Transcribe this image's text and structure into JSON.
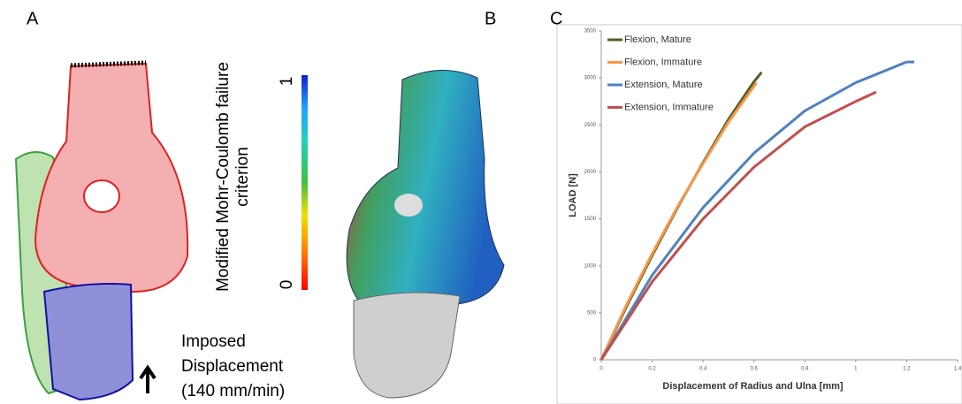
{
  "panel_a": {
    "label": "A",
    "caption_lines": [
      "Imposed",
      "Displacement",
      "(140 mm/min)"
    ]
  },
  "colorbar": {
    "title_lines": [
      "Modified Mohr-Coulomb failure",
      "criterion"
    ],
    "ticks": [
      0,
      1
    ],
    "lim": [
      0,
      1
    ]
  },
  "panel_b": {
    "label": "B"
  },
  "chart_data": {
    "type": "line",
    "label": "C",
    "x_label": "Displacement of Radius and Ulna [mm]",
    "y_label": "LOAD [N]",
    "xlim": [
      0,
      1.4
    ],
    "xticks": [
      0,
      0.2,
      0.4,
      0.6,
      0.8,
      1,
      1.2,
      1.4
    ],
    "ylim": [
      0,
      3500
    ],
    "yticks": [
      0,
      500,
      1000,
      1500,
      2000,
      2500,
      3000,
      3500
    ],
    "legend": "upper left",
    "series": [
      {
        "name": "Flexion, Mature",
        "color": "#4f6228",
        "x": [
          0,
          0.1,
          0.2,
          0.3,
          0.4,
          0.5,
          0.6,
          0.63
        ],
        "values": [
          0,
          570,
          1110,
          1620,
          2100,
          2560,
          2960,
          3060
        ]
      },
      {
        "name": "Flexion, Immature",
        "color": "#f79646",
        "x": [
          0,
          0.1,
          0.2,
          0.3,
          0.4,
          0.5,
          0.61
        ],
        "values": [
          0,
          590,
          1130,
          1630,
          2090,
          2530,
          2950
        ]
      },
      {
        "name": "Extension, Mature",
        "color": "#4f81bd",
        "x": [
          0,
          0.2,
          0.4,
          0.6,
          0.8,
          1,
          1.2,
          1.23
        ],
        "values": [
          0,
          900,
          1620,
          2200,
          2650,
          2950,
          3170,
          3170
        ]
      },
      {
        "name": "Extension, Immature",
        "color": "#c0504d",
        "x": [
          0,
          0.2,
          0.4,
          0.6,
          0.8,
          1,
          1.08
        ],
        "values": [
          0,
          830,
          1500,
          2050,
          2480,
          2750,
          2850
        ]
      }
    ]
  }
}
